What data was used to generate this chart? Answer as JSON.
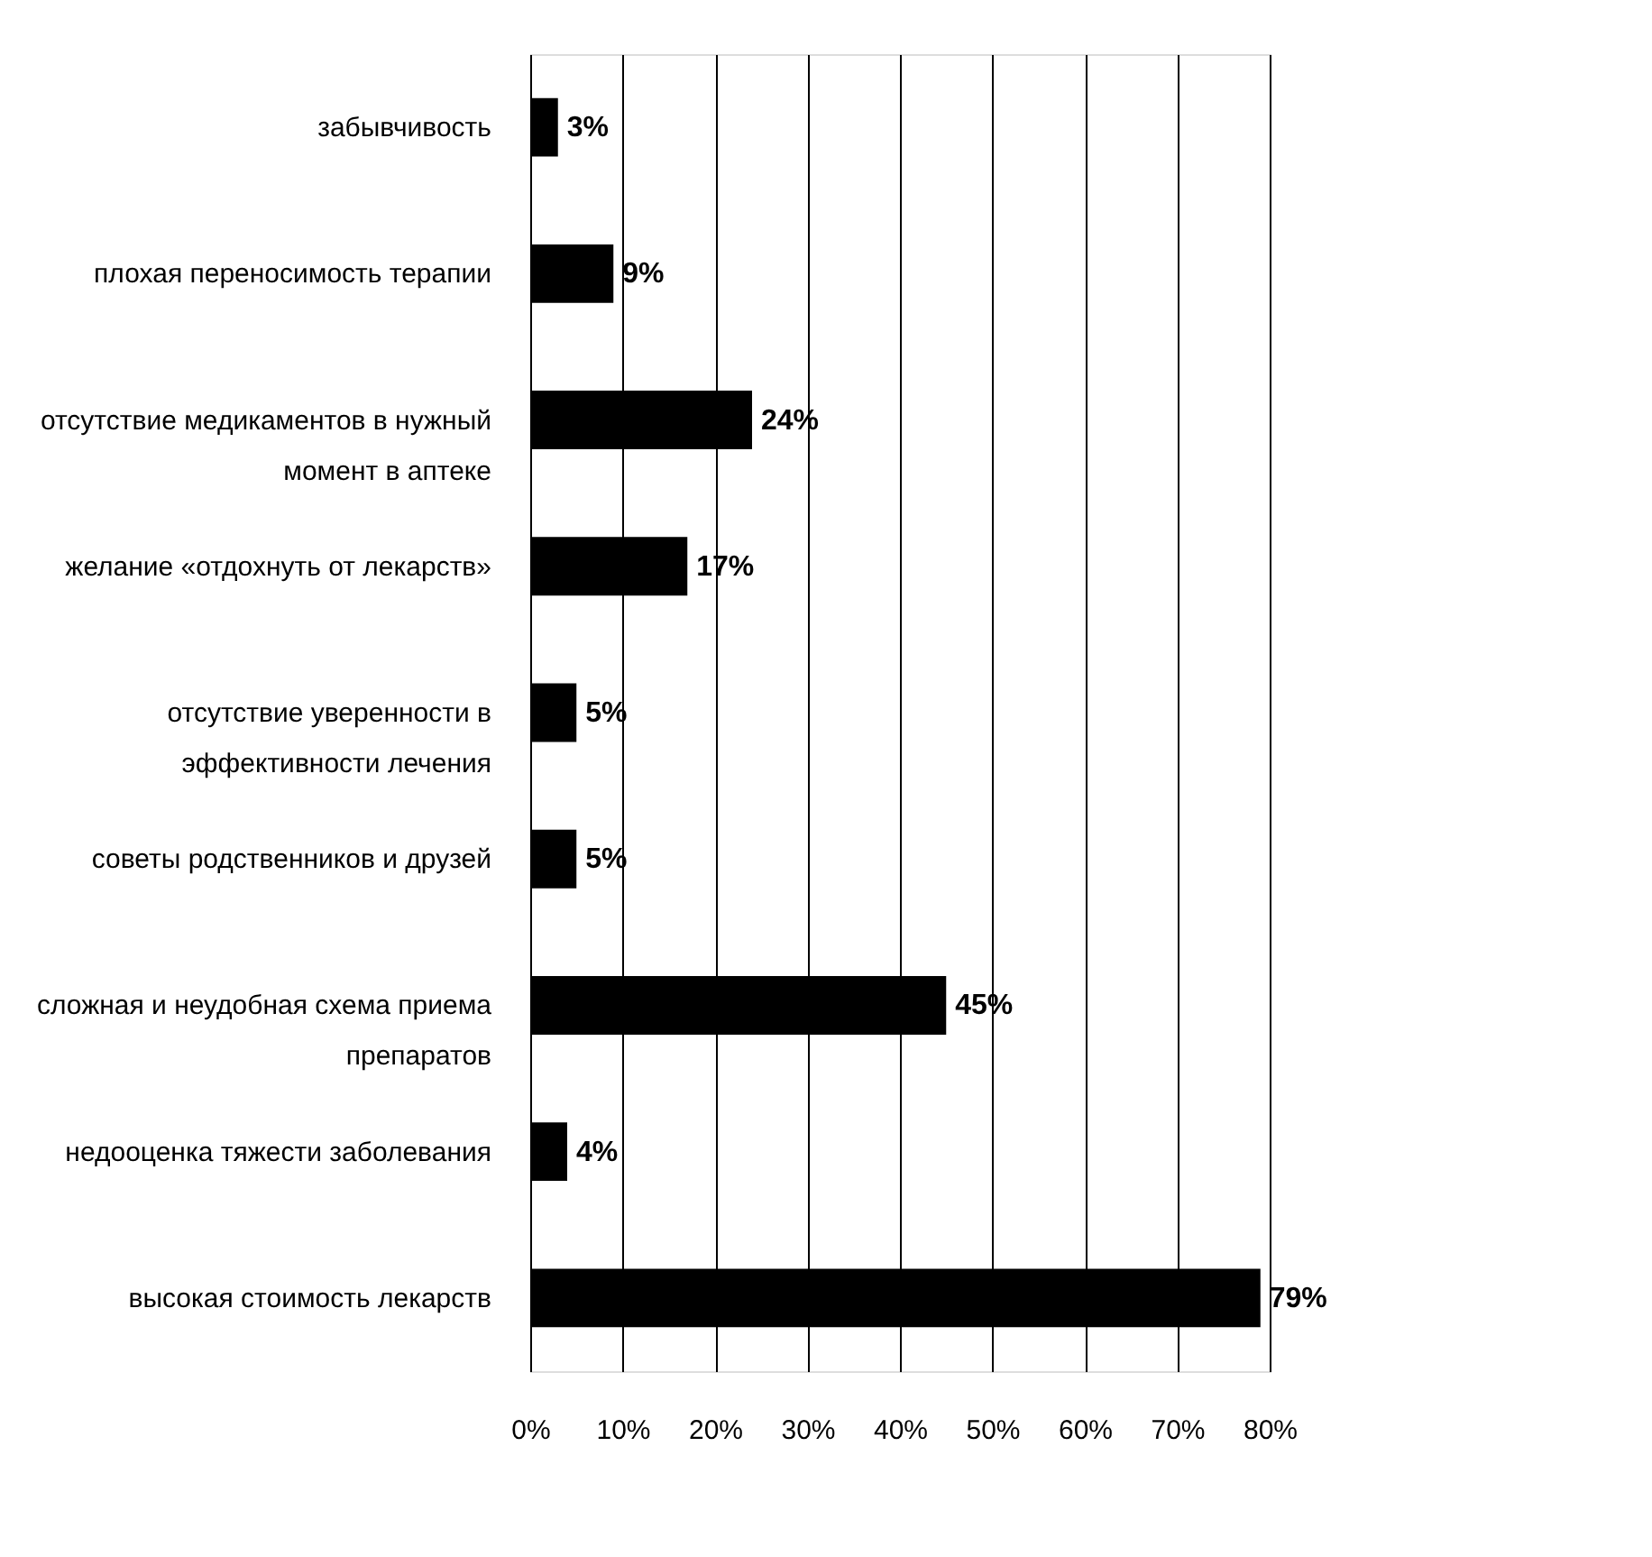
{
  "chart_data": {
    "type": "bar",
    "orientation": "horizontal",
    "categories": [
      "забывчивость",
      "плохая переносимость терапии",
      "отсутствие медикаментов в нужный момент в аптеке",
      "желание «отдохнуть от лекарств»",
      "отсутствие уверенности в эффективности лечения",
      "советы родственников и друзей",
      "сложная и неудобная схема приема препаратов",
      "недооценка тяжести заболевания",
      "высокая стоимость лекарств"
    ],
    "values": [
      3,
      9,
      24,
      17,
      5,
      5,
      45,
      4,
      79
    ],
    "value_labels": [
      "3%",
      "9%",
      "24%",
      "17%",
      "5%",
      "5%",
      "45%",
      "4%",
      "79%"
    ],
    "color": "#000000",
    "xlim": [
      0,
      80
    ],
    "xticks": [
      {
        "value": 0,
        "label": "0%"
      },
      {
        "value": 10,
        "label": "10%"
      },
      {
        "value": 20,
        "label": "20%"
      },
      {
        "value": 30,
        "label": "30%"
      },
      {
        "value": 40,
        "label": "40%"
      },
      {
        "value": 50,
        "label": "50%"
      },
      {
        "value": 60,
        "label": "60%"
      },
      {
        "value": 70,
        "label": "70%"
      },
      {
        "value": 80,
        "label": "80%"
      }
    ],
    "grid": "x"
  }
}
